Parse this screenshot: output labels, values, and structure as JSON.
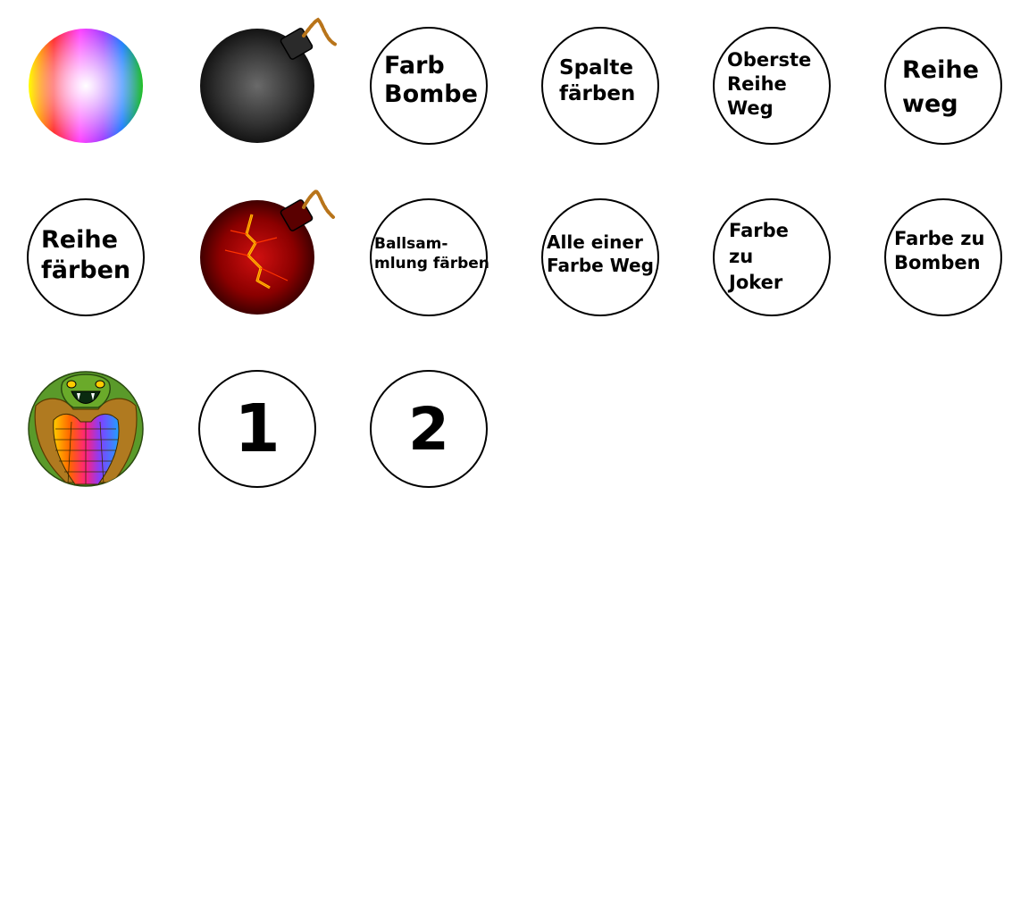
{
  "powerups": {
    "row1": [
      {
        "id": "rainbow-ball",
        "icon": "rainbow-ball-icon"
      },
      {
        "id": "bomb",
        "icon": "bomb-icon"
      },
      {
        "id": "farb-bombe",
        "lines": [
          "Farb",
          "Bombe"
        ]
      },
      {
        "id": "spalte-faerben",
        "lines": [
          "Spalte",
          "färben"
        ]
      },
      {
        "id": "oberste-reihe-weg",
        "lines": [
          "Oberste",
          "Reihe",
          "Weg"
        ]
      },
      {
        "id": "reihe-weg",
        "lines": [
          "Reihe",
          "weg"
        ]
      }
    ],
    "row2": [
      {
        "id": "reihe-faerben",
        "lines": [
          "Reihe",
          "färben"
        ]
      },
      {
        "id": "lava-bomb",
        "icon": "lava-bomb-icon"
      },
      {
        "id": "ballsammlung-faerben",
        "lines": [
          "Ballsam-",
          "mlung färben"
        ]
      },
      {
        "id": "alle-einer-farbe-weg",
        "lines": [
          "Alle einer",
          "Farbe Weg"
        ]
      },
      {
        "id": "farbe-zu-joker",
        "lines": [
          "Farbe",
          "zu",
          "Joker"
        ]
      },
      {
        "id": "farbe-zu-bomben",
        "lines": [
          "Farbe zu",
          "Bomben"
        ]
      }
    ],
    "row3": [
      {
        "id": "cobra",
        "icon": "cobra-icon"
      },
      {
        "id": "one",
        "number": "1"
      },
      {
        "id": "two",
        "number": "2"
      }
    ]
  },
  "colors": {
    "outline": "#000000",
    "bomb_dark": "#1a1a1a",
    "lava_red": "#8b0000",
    "fuse": "#b8741a",
    "cobra_green": "#5a9a2a"
  }
}
